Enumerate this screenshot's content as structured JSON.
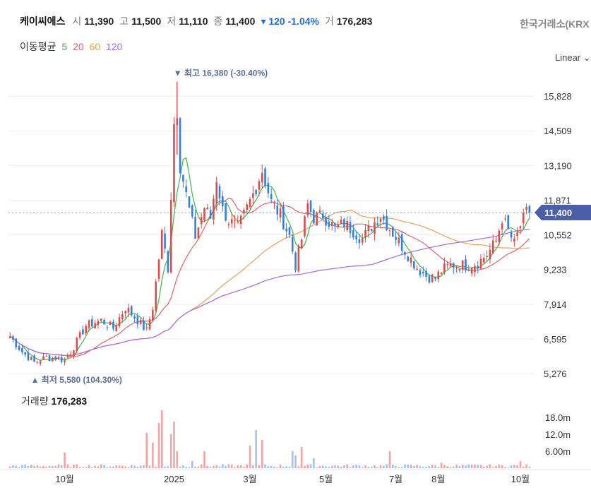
{
  "header": {
    "name": "케이씨에스",
    "open_label": "시",
    "open": "11,390",
    "high_label": "고",
    "high": "11,500",
    "low_label": "저",
    "low": "11,110",
    "close_label": "종",
    "close": "11,400",
    "change": "▾ 120 -1.04%",
    "volume_label": "거",
    "volume": "176,283"
  },
  "exchange": "한국거래소(KRX",
  "ma_legend": {
    "title": "이동평균",
    "ma5": "5",
    "ma20": "20",
    "ma60": "60",
    "ma120": "120"
  },
  "scale_select": {
    "value": "Linear",
    "chevron": "⌄"
  },
  "volume_panel": {
    "title": "거래량",
    "value": "176,283"
  },
  "colors": {
    "up": "#e04a4a",
    "down": "#2f80e0",
    "ma5": "#41b84a",
    "ma20": "#e0646b",
    "ma60": "#eca056",
    "ma120": "#a36ae6",
    "current_tag": "#4a5fa8"
  },
  "chart_data": {
    "type": "candlestick",
    "price_axis": {
      "ticks": [
        5276,
        6595,
        7914,
        9233,
        10552,
        11871,
        13190,
        14509,
        15828
      ],
      "tick_labels": [
        "5,276",
        "6,595",
        "7,914",
        "9,233",
        "10,552",
        "11,871",
        "13,190",
        "14,509",
        "15,828"
      ],
      "range": [
        4850,
        17200
      ]
    },
    "volume_axis": {
      "ticks": [
        6000000,
        12000000,
        18000000
      ],
      "tick_labels": [
        "6.00m",
        "12.0m",
        "18.0m"
      ],
      "range": [
        0,
        22000000
      ]
    },
    "x_axis": {
      "tick_labels": [
        "10월",
        "2025",
        "3월",
        "5월",
        "7월",
        "8월",
        "10월"
      ],
      "tick_index": [
        18,
        54,
        79,
        104,
        127,
        141,
        168
      ]
    },
    "current_price": {
      "value": 11400,
      "label": "11,400"
    },
    "annotations": [
      {
        "label": "▼ 최고 16,380 (-30.40%)",
        "value": 16380,
        "index": 55
      },
      {
        "label": "▲ 최저 5,580 (104.30%)",
        "value": 5580,
        "index": 8
      }
    ],
    "series": [
      {
        "name": "5",
        "kind": "ma",
        "period": 5
      },
      {
        "name": "20",
        "kind": "ma",
        "period": 20
      },
      {
        "name": "60",
        "kind": "ma",
        "period": 60
      },
      {
        "name": "120",
        "kind": "ma",
        "period": 120
      }
    ],
    "close_anchors": [
      [
        0,
        6700
      ],
      [
        4,
        6100
      ],
      [
        8,
        5700
      ],
      [
        12,
        5900
      ],
      [
        16,
        5850
      ],
      [
        18,
        5800
      ],
      [
        21,
        6300
      ],
      [
        25,
        7100
      ],
      [
        30,
        7300
      ],
      [
        34,
        7000
      ],
      [
        38,
        7800
      ],
      [
        42,
        7300
      ],
      [
        45,
        6900
      ],
      [
        47,
        7800
      ],
      [
        50,
        10600
      ],
      [
        52,
        9300
      ],
      [
        54,
        14800
      ],
      [
        55,
        15300
      ],
      [
        56,
        13200
      ],
      [
        59,
        11500
      ],
      [
        61,
        10500
      ],
      [
        64,
        11600
      ],
      [
        66,
        11200
      ],
      [
        68,
        12700
      ],
      [
        70,
        11500
      ],
      [
        72,
        11100
      ],
      [
        75,
        10800
      ],
      [
        77,
        11300
      ],
      [
        80,
        12100
      ],
      [
        83,
        13000
      ],
      [
        86,
        11800
      ],
      [
        89,
        11300
      ],
      [
        92,
        10500
      ],
      [
        94,
        9400
      ],
      [
        96,
        10400
      ],
      [
        98,
        11700
      ],
      [
        100,
        11200
      ],
      [
        103,
        11300
      ],
      [
        107,
        10800
      ],
      [
        110,
        11000
      ],
      [
        113,
        10700
      ],
      [
        116,
        10400
      ],
      [
        119,
        10900
      ],
      [
        122,
        11300
      ],
      [
        125,
        10800
      ],
      [
        128,
        10300
      ],
      [
        131,
        9800
      ],
      [
        134,
        9300
      ],
      [
        137,
        9000
      ],
      [
        140,
        8900
      ],
      [
        142,
        9200
      ],
      [
        145,
        9400
      ],
      [
        148,
        9400
      ],
      [
        151,
        9400
      ],
      [
        154,
        9500
      ],
      [
        157,
        9800
      ],
      [
        160,
        10300
      ],
      [
        162,
        11200
      ],
      [
        164,
        10700
      ],
      [
        166,
        10200
      ],
      [
        168,
        10900
      ],
      [
        170,
        11400
      ]
    ],
    "volume_spikes": [
      [
        18,
        5500000
      ],
      [
        45,
        12500000
      ],
      [
        47,
        9000000
      ],
      [
        49,
        16000000
      ],
      [
        50,
        20500000
      ],
      [
        53,
        12000000
      ],
      [
        54,
        16500000
      ],
      [
        55,
        6000000
      ],
      [
        60,
        2500000
      ],
      [
        64,
        6000000
      ],
      [
        79,
        8000000
      ],
      [
        81,
        13500000
      ],
      [
        83,
        10000000
      ],
      [
        93,
        6000000
      ],
      [
        94,
        4500000
      ],
      [
        96,
        7500000
      ],
      [
        100,
        3500000
      ],
      [
        125,
        6000000
      ],
      [
        142,
        2000000
      ],
      [
        168,
        2500000
      ]
    ]
  }
}
